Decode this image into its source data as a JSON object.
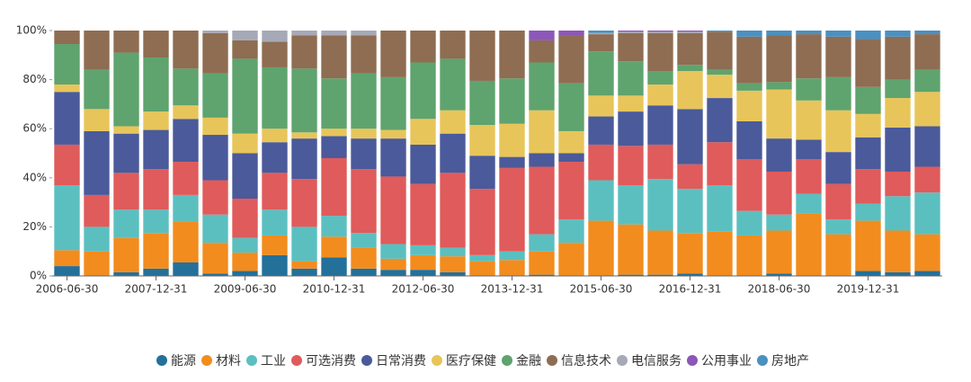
{
  "chart_data": {
    "type": "stacked_bar_percent",
    "categories": [
      "2006-06-30",
      null,
      null,
      "2007-12-31",
      null,
      null,
      "2009-06-30",
      null,
      null,
      "2010-12-31",
      null,
      null,
      "2012-06-30",
      null,
      null,
      "2013-12-31",
      null,
      null,
      "2015-06-30",
      null,
      null,
      "2016-12-31",
      null,
      null,
      "2018-06-30",
      null,
      null,
      "2019-12-31",
      null,
      null
    ],
    "ylim": [
      0,
      100
    ],
    "yticks": [
      {
        "value": 0,
        "label": "0%"
      },
      {
        "value": 20,
        "label": "20%"
      },
      {
        "value": 40,
        "label": "40%"
      },
      {
        "value": 60,
        "label": "60%"
      },
      {
        "value": 80,
        "label": "80%"
      },
      {
        "value": 100,
        "label": "100%"
      }
    ],
    "grid": false,
    "legend": "bottom",
    "series": [
      {
        "name": "能源",
        "color": "#23709a",
        "values": [
          4,
          0,
          1.5,
          3,
          5.5,
          1,
          2,
          8.5,
          3,
          7.5,
          3,
          2.5,
          2.5,
          1.5,
          0,
          0,
          0.5,
          0,
          0,
          0.5,
          0.5,
          1,
          0,
          0,
          1,
          0,
          0,
          2,
          1.5,
          2
        ]
      },
      {
        "name": "材料",
        "color": "#f28c1e",
        "values": [
          6.5,
          10,
          14,
          14.5,
          16.5,
          12.5,
          7.5,
          8,
          3,
          8.5,
          8.5,
          4.5,
          6,
          6.5,
          6,
          6.5,
          9.5,
          13.5,
          22.5,
          20.5,
          18,
          16.5,
          18,
          16.5,
          17.5,
          25.5,
          17,
          20.5,
          17,
          15
        ]
      },
      {
        "name": "工业",
        "color": "#5bbfc0",
        "values": [
          26.5,
          10,
          11.5,
          9.5,
          11,
          11.5,
          6,
          10.5,
          14,
          8.5,
          6,
          6,
          4,
          3.5,
          2.5,
          3.5,
          7,
          9.5,
          16.5,
          16,
          21,
          18,
          19,
          10,
          6.5,
          8,
          6,
          7,
          14,
          17
        ]
      },
      {
        "name": "可选消费",
        "color": "#e05b5b",
        "values": [
          16.5,
          13,
          15,
          16.5,
          13.5,
          14,
          16,
          15,
          19.5,
          23.5,
          26,
          27.5,
          25,
          30.5,
          27,
          34,
          27.5,
          23.5,
          14.5,
          16,
          14,
          10,
          17.5,
          21,
          17.5,
          14,
          14.5,
          14,
          10,
          10.5
        ]
      },
      {
        "name": "日常消费",
        "color": "#4a5a9a",
        "values": [
          21.5,
          26,
          16,
          16,
          17.5,
          18.5,
          18.5,
          12.5,
          16.5,
          9,
          12.5,
          15.5,
          16,
          16,
          13.5,
          4.5,
          5.5,
          3.5,
          11.5,
          14,
          16,
          22.5,
          18,
          15.5,
          13.5,
          8,
          13,
          13,
          18,
          16.5
        ]
      },
      {
        "name": "医疗保健",
        "color": "#e8c55a",
        "values": [
          3,
          9,
          3,
          7.5,
          5.5,
          7,
          8,
          5.5,
          2.5,
          3,
          4,
          3.5,
          10.5,
          9.5,
          12.5,
          13.5,
          17.5,
          9,
          8.5,
          6.5,
          8.5,
          15.5,
          9.5,
          12.5,
          20,
          16,
          17,
          9.5,
          12,
          14
        ]
      },
      {
        "name": "金融",
        "color": "#5fa36e",
        "values": [
          16.5,
          16,
          30,
          22,
          15,
          18,
          30.5,
          25,
          26,
          20.5,
          22.5,
          21.5,
          23,
          21,
          18,
          18.5,
          19.5,
          19.5,
          18,
          14,
          5.5,
          2.5,
          2,
          3,
          3,
          9,
          13.5,
          11,
          7.5,
          9
        ]
      },
      {
        "name": "信息技术",
        "color": "#8e6d52",
        "values": [
          5.5,
          16,
          9,
          11,
          15.5,
          16.5,
          7.5,
          10.5,
          13.5,
          17.5,
          15.5,
          19,
          13,
          11.5,
          20.5,
          19.5,
          9,
          19.5,
          7,
          11.5,
          15.5,
          13,
          15.5,
          19,
          19,
          18,
          16.5,
          19.5,
          17.5,
          14.5
        ]
      },
      {
        "name": "电信服务",
        "color": "#a6a9b6",
        "values": [
          0,
          0,
          0,
          0,
          0,
          1,
          4,
          4.5,
          2,
          2,
          2,
          0,
          0,
          0,
          0,
          0,
          0,
          0,
          0.5,
          0.5,
          0.5,
          0.5,
          0,
          0,
          0,
          0,
          0,
          0,
          0,
          0
        ]
      },
      {
        "name": "公用事业",
        "color": "#8c57b8",
        "values": [
          0,
          0,
          0,
          0,
          0,
          0,
          0,
          0,
          0,
          0,
          0,
          0,
          0,
          0,
          0,
          0,
          4,
          2,
          0,
          0.5,
          0.5,
          0.5,
          0,
          0,
          0,
          0,
          0,
          0,
          0,
          0
        ]
      },
      {
        "name": "房地产",
        "color": "#4a90c0",
        "values": [
          0,
          0,
          0,
          0,
          0,
          0,
          0,
          0,
          0,
          0,
          0,
          0,
          0,
          0,
          0,
          0,
          0,
          0,
          1,
          0,
          0,
          0,
          0.5,
          2.5,
          2,
          1.5,
          2.5,
          3.5,
          2.5,
          1.5
        ]
      }
    ]
  }
}
